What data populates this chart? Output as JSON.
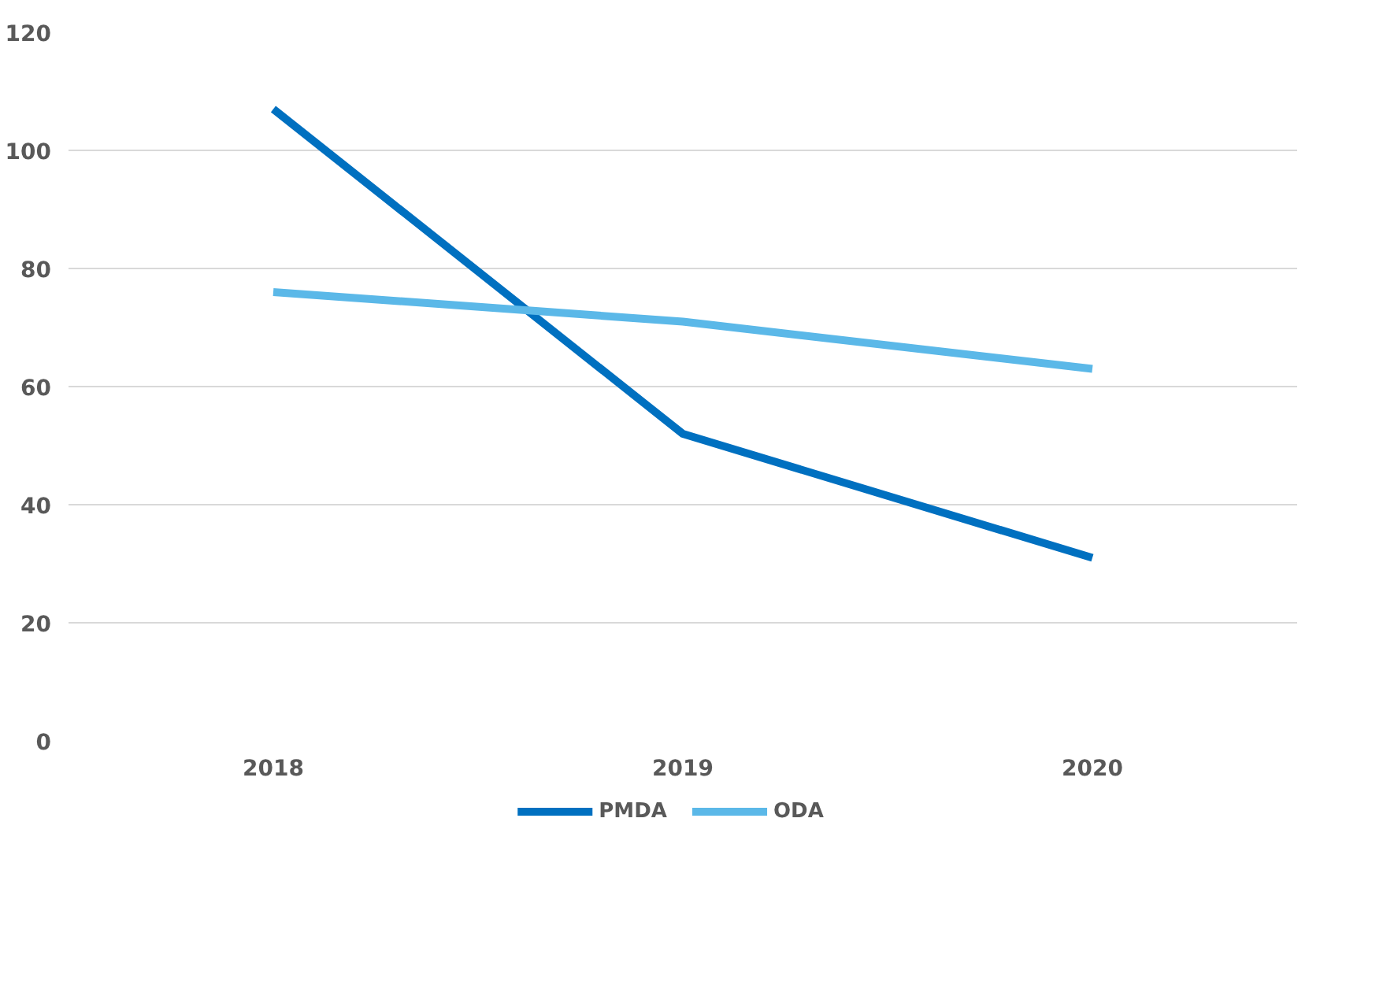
{
  "chart_data": {
    "type": "line",
    "categories": [
      "2018",
      "2019",
      "2020"
    ],
    "series": [
      {
        "name": "PMDA",
        "color": "#0070c0",
        "values": [
          107,
          52,
          31
        ]
      },
      {
        "name": "ODA",
        "color": "#5bb8e8",
        "values": [
          76,
          71,
          63
        ]
      }
    ],
    "ylim": [
      0,
      120
    ],
    "yticks": [
      0,
      20,
      40,
      60,
      80,
      100,
      120
    ],
    "grid": "y",
    "legend": "bottom",
    "marker": "none",
    "line_style": "solid"
  }
}
